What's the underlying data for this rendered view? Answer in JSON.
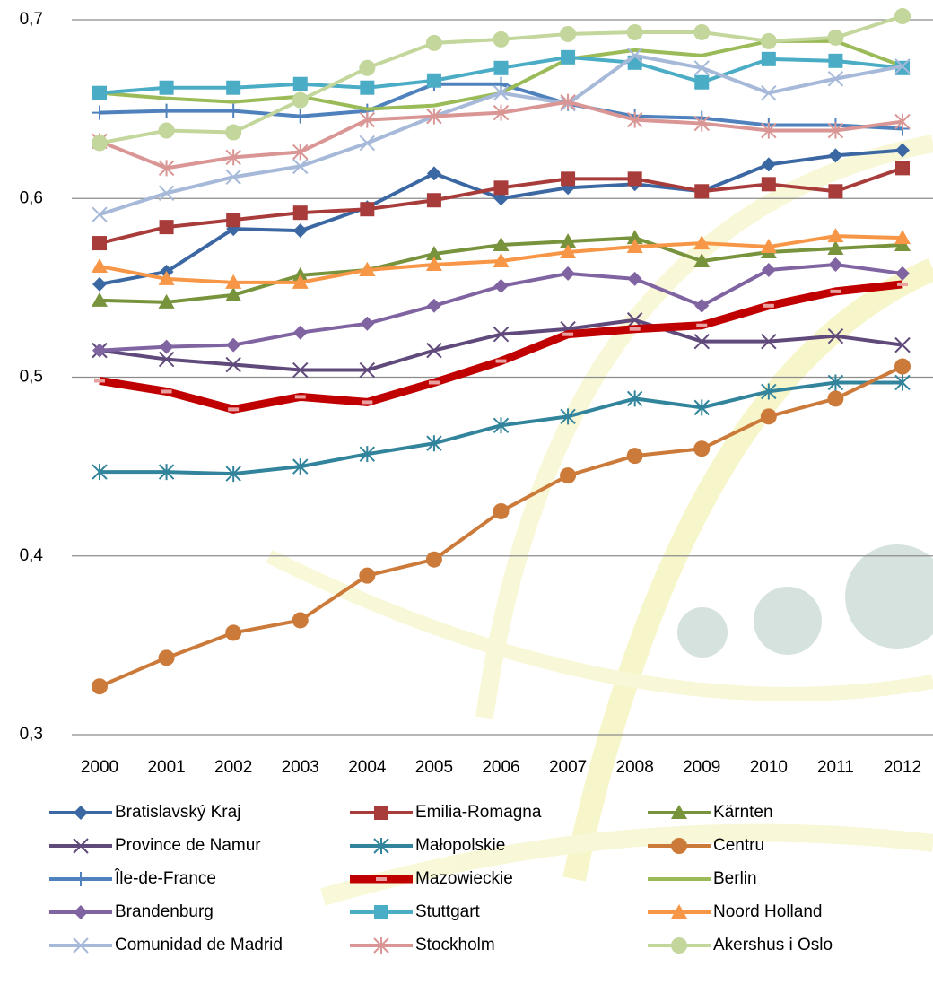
{
  "chart_data": {
    "type": "line",
    "categories": [
      "2000",
      "2001",
      "2002",
      "2003",
      "2004",
      "2005",
      "2006",
      "2007",
      "2008",
      "2009",
      "2010",
      "2011",
      "2012"
    ],
    "ylim": [
      0.3,
      0.7
    ],
    "yticks": [
      {
        "value": 0.3,
        "label": "0,3"
      },
      {
        "value": 0.4,
        "label": "0,4"
      },
      {
        "value": 0.5,
        "label": "0,5"
      },
      {
        "value": 0.6,
        "label": "0,6"
      },
      {
        "value": 0.7,
        "label": "0,7"
      }
    ],
    "grid": true,
    "legend": "bottom",
    "series": [
      {
        "name": "Bratislavský Kraj",
        "color": "#3b68a3",
        "marker": "diamond",
        "values": [
          0.552,
          0.559,
          0.583,
          0.582,
          0.595,
          0.614,
          0.6,
          0.606,
          0.608,
          0.604,
          0.619,
          0.624,
          0.627
        ]
      },
      {
        "name": "Emilia-Romagna",
        "color": "#a83c3a",
        "marker": "square",
        "values": [
          0.575,
          0.584,
          0.588,
          0.592,
          0.594,
          0.599,
          0.606,
          0.611,
          0.611,
          0.604,
          0.608,
          0.604,
          0.617
        ]
      },
      {
        "name": "Kärnten",
        "color": "#77933c",
        "marker": "triangle",
        "values": [
          0.543,
          0.542,
          0.546,
          0.557,
          0.56,
          0.569,
          0.574,
          0.576,
          0.578,
          0.565,
          0.57,
          0.572,
          0.574
        ]
      },
      {
        "name": "Province de Namur",
        "color": "#604a7b",
        "marker": "x",
        "values": [
          0.515,
          0.51,
          0.507,
          0.504,
          0.504,
          0.515,
          0.524,
          0.527,
          0.532,
          0.52,
          0.52,
          0.523,
          0.518
        ]
      },
      {
        "name": "Małopolskie",
        "color": "#31849b",
        "marker": "asterisk",
        "values": [
          0.447,
          0.447,
          0.446,
          0.45,
          0.457,
          0.463,
          0.473,
          0.478,
          0.488,
          0.483,
          0.492,
          0.497,
          0.497
        ]
      },
      {
        "name": "Centru",
        "color": "#cc7a3a",
        "marker": "circle",
        "values": [
          0.327,
          0.343,
          0.357,
          0.364,
          0.389,
          0.398,
          0.425,
          0.445,
          0.456,
          0.46,
          0.478,
          0.488,
          0.506
        ]
      },
      {
        "name": "Île-de-France",
        "color": "#4f81bd",
        "marker": "plus",
        "values": [
          0.648,
          0.649,
          0.649,
          0.646,
          0.649,
          0.664,
          0.664,
          0.653,
          0.646,
          0.645,
          0.641,
          0.641,
          0.639
        ]
      },
      {
        "name": "Mazowieckie",
        "color": "#c00000",
        "marker": "dash",
        "marker_color": "#e8a0a0",
        "line_width": 9,
        "values": [
          0.498,
          0.492,
          0.482,
          0.489,
          0.486,
          0.497,
          0.509,
          0.524,
          0.527,
          0.529,
          0.54,
          0.548,
          0.552
        ]
      },
      {
        "name": "Berlin",
        "color": "#9bbb59",
        "marker": "none",
        "values": [
          0.659,
          0.656,
          0.654,
          0.657,
          0.65,
          0.652,
          0.659,
          0.678,
          0.683,
          0.68,
          0.688,
          0.688,
          0.674
        ]
      },
      {
        "name": "Brandenburg",
        "color": "#8064a2",
        "marker": "diamond",
        "values": [
          0.515,
          0.517,
          0.518,
          0.525,
          0.53,
          0.54,
          0.551,
          0.558,
          0.555,
          0.54,
          0.56,
          0.563,
          0.558
        ]
      },
      {
        "name": "Stuttgart",
        "color": "#4bacc6",
        "marker": "square",
        "values": [
          0.659,
          0.662,
          0.662,
          0.664,
          0.662,
          0.666,
          0.673,
          0.679,
          0.676,
          0.665,
          0.678,
          0.677,
          0.673
        ]
      },
      {
        "name": "Noord Holland",
        "color": "#f79646",
        "marker": "triangle",
        "values": [
          0.562,
          0.555,
          0.553,
          0.553,
          0.56,
          0.563,
          0.565,
          0.57,
          0.573,
          0.575,
          0.573,
          0.579,
          0.578
        ]
      },
      {
        "name": "Comunidad de Madrid",
        "color": "#a6b9d9",
        "marker": "x",
        "values": [
          0.591,
          0.603,
          0.612,
          0.618,
          0.631,
          0.646,
          0.659,
          0.653,
          0.68,
          0.673,
          0.659,
          0.667,
          0.674
        ]
      },
      {
        "name": "Stockholm",
        "color": "#d99694",
        "marker": "asterisk",
        "values": [
          0.632,
          0.617,
          0.623,
          0.626,
          0.644,
          0.646,
          0.648,
          0.654,
          0.644,
          0.642,
          0.638,
          0.638,
          0.643
        ]
      },
      {
        "name": "Akershus i Oslo",
        "color": "#c3d69b",
        "marker": "circle",
        "values": [
          0.631,
          0.638,
          0.637,
          0.655,
          0.673,
          0.687,
          0.689,
          0.692,
          0.693,
          0.693,
          0.688,
          0.69,
          0.702
        ]
      }
    ]
  }
}
